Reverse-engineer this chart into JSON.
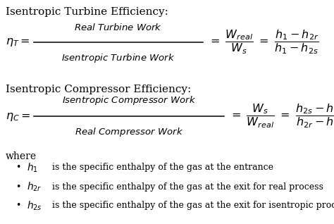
{
  "bg_color": "#ffffff",
  "text_color": "#000000",
  "fig_width": 4.74,
  "fig_height": 3.18,
  "dpi": 100,
  "title1": "Isentropic Turbine Efficiency:",
  "title2": "Isentropic Compressor Efficiency:",
  "where_label": "where",
  "bullet1_text": " is the specific enthalpy of the gas at the entrance",
  "bullet2_text": " is the specific enthalpy of the gas at the exit for real process",
  "bullet3_text": " is the specific enthalpy of the gas at the exit for isentropic process"
}
